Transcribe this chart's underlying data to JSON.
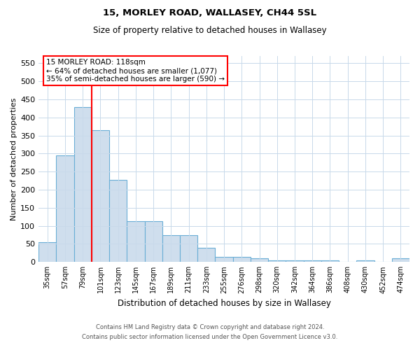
{
  "title1": "15, MORLEY ROAD, WALLASEY, CH44 5SL",
  "title2": "Size of property relative to detached houses in Wallasey",
  "xlabel": "Distribution of detached houses by size in Wallasey",
  "ylabel": "Number of detached properties",
  "bar_labels": [
    "35sqm",
    "57sqm",
    "79sqm",
    "101sqm",
    "123sqm",
    "145sqm",
    "167sqm",
    "189sqm",
    "211sqm",
    "233sqm",
    "255sqm",
    "276sqm",
    "298sqm",
    "320sqm",
    "342sqm",
    "364sqm",
    "386sqm",
    "408sqm",
    "430sqm",
    "452sqm",
    "474sqm"
  ],
  "bar_values": [
    55,
    295,
    428,
    365,
    228,
    113,
    113,
    75,
    75,
    40,
    15,
    15,
    10,
    5,
    5,
    5,
    5,
    0,
    5,
    0,
    10
  ],
  "bar_color": "#cfdeed",
  "bar_edge_color": "#6aaed6",
  "vline_x": 2.5,
  "vline_color": "red",
  "annotation_text": "15 MORLEY ROAD: 118sqm\n← 64% of detached houses are smaller (1,077)\n35% of semi-detached houses are larger (590) →",
  "annotation_box_color": "white",
  "annotation_box_edge_color": "red",
  "ylim": [
    0,
    570
  ],
  "yticks": [
    0,
    50,
    100,
    150,
    200,
    250,
    300,
    350,
    400,
    450,
    500,
    550
  ],
  "footnote1": "Contains HM Land Registry data © Crown copyright and database right 2024.",
  "footnote2": "Contains public sector information licensed under the Open Government Licence v3.0.",
  "bg_color": "#ffffff",
  "grid_color": "#c8d9ea"
}
